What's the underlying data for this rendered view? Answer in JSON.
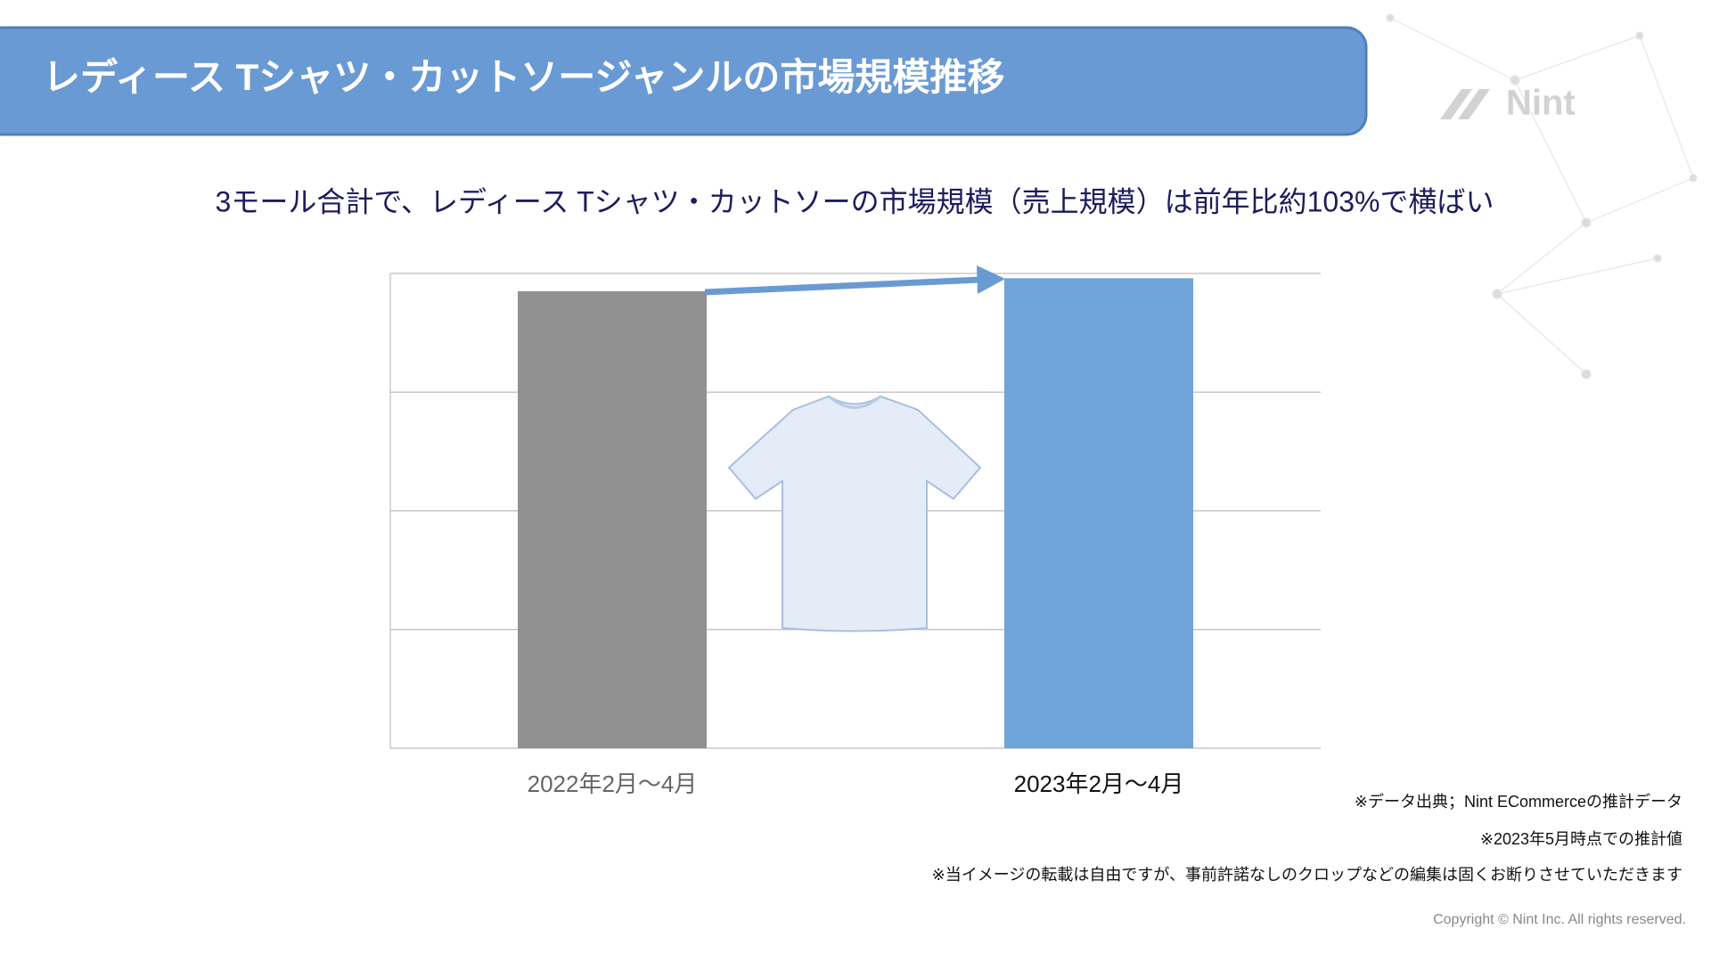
{
  "slide": {
    "title": "レディース Tシャツ・カットソージャンルの市場規模推移",
    "logo": "Nint",
    "notes": [
      "※データ出典；Nint ECommerceの推計データ",
      "※2023年5月時点での推計値",
      "※当イメージの転載は自由ですが、事前許諾なしのクロップなどの編集は固くお断りさせていただきます"
    ],
    "copyright": "Copyright © Nint Inc. All rights reserved."
  },
  "chart_data": {
    "type": "bar",
    "subtitle": "3モール合計で、レディース Tシャツ・カットソーの市場規模（売上規模）は前年比約103%で横ばい",
    "categories": [
      "2022年2月〜4月",
      "2023年2月〜4月"
    ],
    "values": [
      3.85,
      3.96
    ],
    "colors": [
      "#919191",
      "#6fa5d8"
    ],
    "ylim": [
      0,
      4
    ],
    "yticks": [
      0,
      1,
      2,
      3,
      4
    ],
    "grid": true
  }
}
